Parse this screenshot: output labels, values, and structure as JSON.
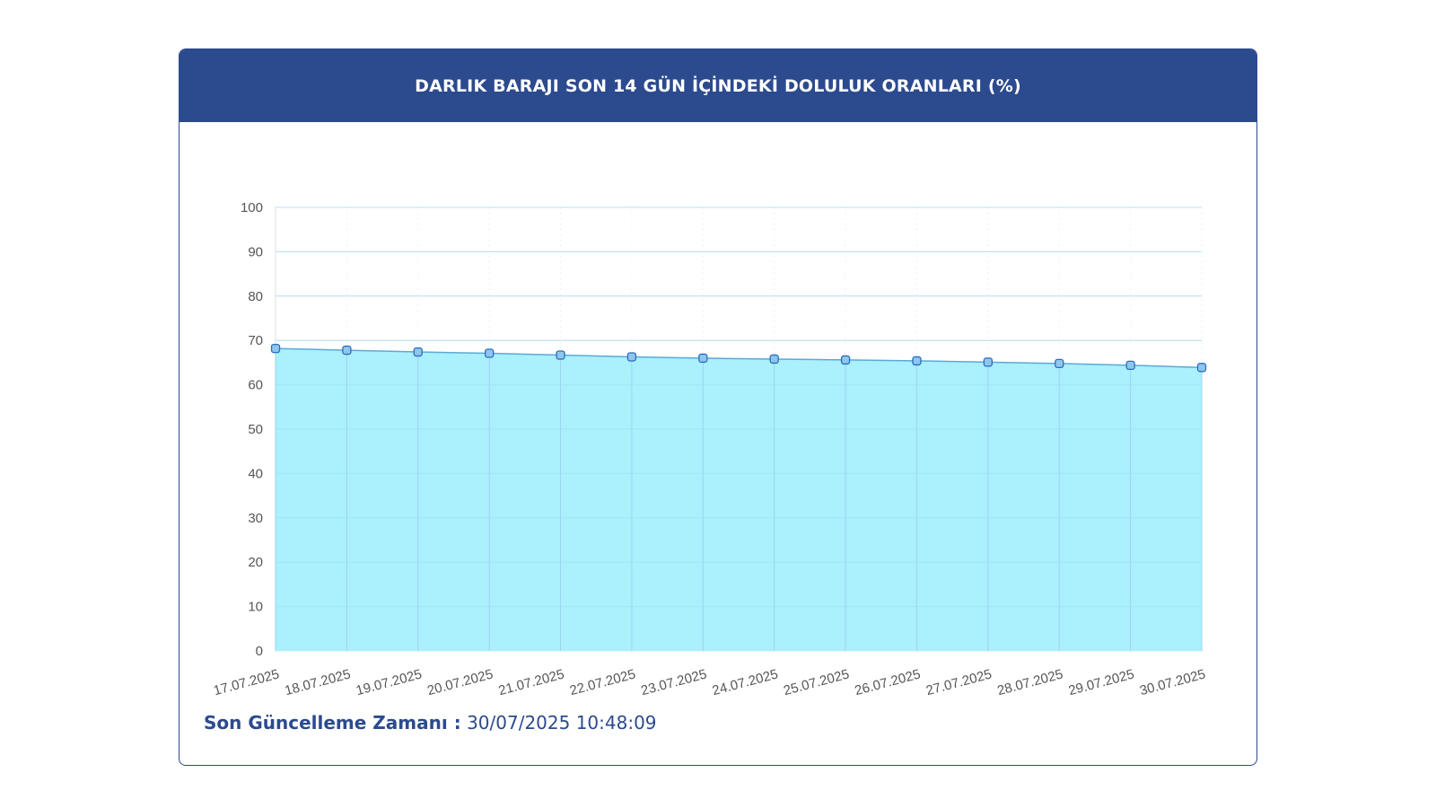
{
  "header": {
    "title": "DARLIK BARAJI SON 14 GÜN İÇİNDEKİ DOLULUK ORANLARI (%)"
  },
  "footer": {
    "label": "Son Güncelleme Zamanı :",
    "value": "30/07/2025 10:48:09"
  },
  "colors": {
    "header_bg": "#2c4a8e",
    "area_fill": "#aaf0fd",
    "line": "#5ba9d6",
    "marker_fill": "#8fc6ec",
    "marker_stroke": "#2a6ebd",
    "grid": "#e6e6e6",
    "vertical_grid": "#9fd3f0"
  },
  "chart_data": {
    "type": "area",
    "title": "DARLIK BARAJI SON 14 GÜN İÇİNDEKİ DOLULUK ORANLARI (%)",
    "xlabel": "",
    "ylabel": "",
    "ylim": [
      0,
      100
    ],
    "yticks": [
      0,
      10,
      20,
      30,
      40,
      50,
      60,
      70,
      80,
      90,
      100
    ],
    "grid": true,
    "categories": [
      "17.07.2025",
      "18.07.2025",
      "19.07.2025",
      "20.07.2025",
      "21.07.2025",
      "22.07.2025",
      "23.07.2025",
      "24.07.2025",
      "25.07.2025",
      "26.07.2025",
      "27.07.2025",
      "28.07.2025",
      "29.07.2025",
      "30.07.2025"
    ],
    "values": [
      68.2,
      67.8,
      67.4,
      67.1,
      66.7,
      66.3,
      66.0,
      65.8,
      65.6,
      65.4,
      65.1,
      64.8,
      64.4,
      63.9
    ]
  }
}
